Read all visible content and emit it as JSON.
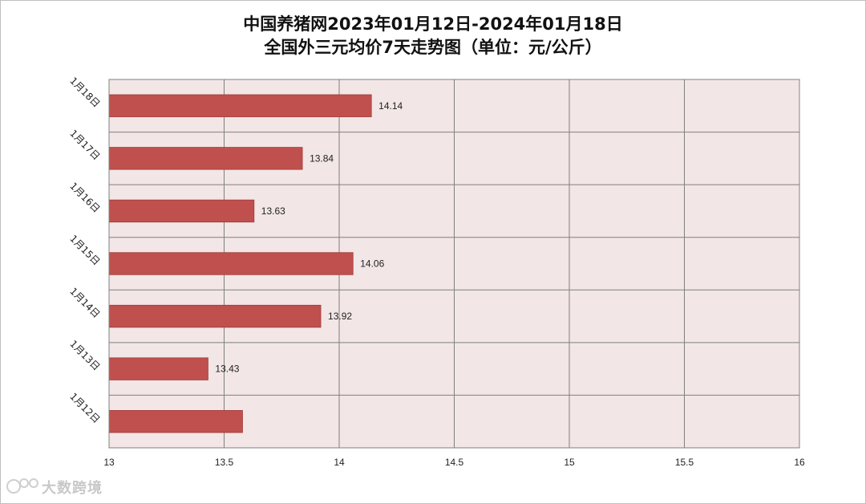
{
  "chart_data": {
    "type": "bar",
    "orientation": "horizontal",
    "title_line1": "中国养猪网2023年01月12日-2024年01月18日",
    "title_line2": "全国外三元均价7天走势图（单位：元/公斤）",
    "categories": [
      "1月18日",
      "1月17日",
      "1月16日",
      "1月15日",
      "1月14日",
      "1月13日",
      "1月12日"
    ],
    "values": [
      14.14,
      13.84,
      13.63,
      14.06,
      13.92,
      13.43,
      13.58
    ],
    "data_labels": [
      "14.14",
      "13.84",
      "13.63",
      "14.06",
      "13.92",
      "13.43",
      ""
    ],
    "xlim": [
      13,
      16
    ],
    "x_ticks": [
      "13",
      "13.5",
      "14",
      "14.5",
      "15",
      "15.5",
      "16"
    ],
    "grid": true,
    "colors": {
      "bar": "#c0504d",
      "bar_border": "#9e3a38",
      "plot_bg": "#f2e6e6",
      "grid": "#808080"
    }
  },
  "watermark": "大数跨境"
}
